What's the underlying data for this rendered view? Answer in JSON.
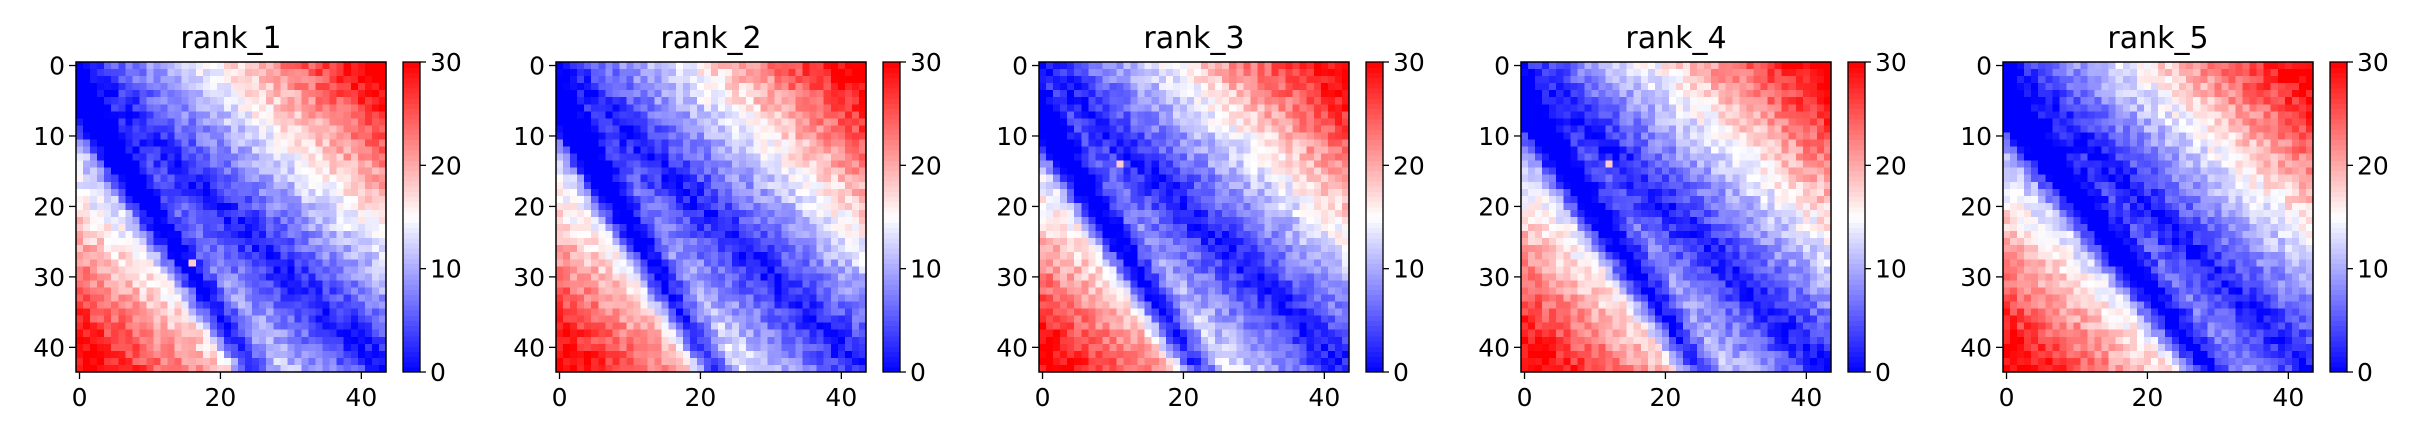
{
  "chart_data": [
    {
      "type": "heatmap",
      "title": "rank_1",
      "n": 44,
      "x_ticks": [
        0,
        20,
        40
      ],
      "y_ticks": [
        0,
        10,
        20,
        30,
        40
      ],
      "colorbar": {
        "min": 0,
        "max": 30,
        "ticks": [
          0,
          10,
          20,
          30
        ],
        "colormap": "bwr"
      },
      "pattern": {
        "band_width": 6,
        "slope": 1.55,
        "arm_offset": 5,
        "arm_width": 3.2,
        "seed": 11,
        "hotspots": [
          [
            28,
            16
          ]
        ]
      }
    },
    {
      "type": "heatmap",
      "title": "rank_2",
      "n": 44,
      "x_ticks": [
        0,
        20,
        40
      ],
      "y_ticks": [
        0,
        10,
        20,
        30,
        40
      ],
      "colorbar": {
        "min": 0,
        "max": 30,
        "ticks": [
          0,
          10,
          20,
          30
        ],
        "colormap": "bwr"
      },
      "pattern": {
        "band_width": 5.5,
        "slope": 1.7,
        "arm_offset": 6,
        "arm_width": 3.4,
        "seed": 23,
        "hotspots": []
      }
    },
    {
      "type": "heatmap",
      "title": "rank_3",
      "n": 44,
      "x_ticks": [
        0,
        20,
        40
      ],
      "y_ticks": [
        0,
        10,
        20,
        30,
        40
      ],
      "colorbar": {
        "min": 0,
        "max": 30,
        "ticks": [
          0,
          10,
          20,
          30
        ],
        "colormap": "bwr"
      },
      "pattern": {
        "band_width": 5.5,
        "slope": 1.6,
        "arm_offset": 8,
        "arm_width": 3.4,
        "seed": 37,
        "hotspots": [
          [
            14,
            11
          ]
        ]
      }
    },
    {
      "type": "heatmap",
      "title": "rank_4",
      "n": 44,
      "x_ticks": [
        0,
        20,
        40
      ],
      "y_ticks": [
        0,
        10,
        20,
        30,
        40
      ],
      "colorbar": {
        "min": 0,
        "max": 30,
        "ticks": [
          0,
          10,
          20,
          30
        ],
        "colormap": "bwr"
      },
      "pattern": {
        "band_width": 5.5,
        "slope": 1.5,
        "arm_offset": 6,
        "arm_width": 3.2,
        "seed": 41,
        "hotspots": [
          [
            14,
            12
          ]
        ]
      }
    },
    {
      "type": "heatmap",
      "title": "rank_5",
      "n": 44,
      "x_ticks": [
        0,
        20,
        40
      ],
      "y_ticks": [
        0,
        10,
        20,
        30,
        40
      ],
      "colorbar": {
        "min": 0,
        "max": 30,
        "ticks": [
          0,
          10,
          20,
          30
        ],
        "colormap": "bwr"
      },
      "pattern": {
        "band_width": 6,
        "slope": 1.3,
        "arm_offset": 6,
        "arm_width": 3.2,
        "seed": 53,
        "hotspots": []
      }
    }
  ]
}
